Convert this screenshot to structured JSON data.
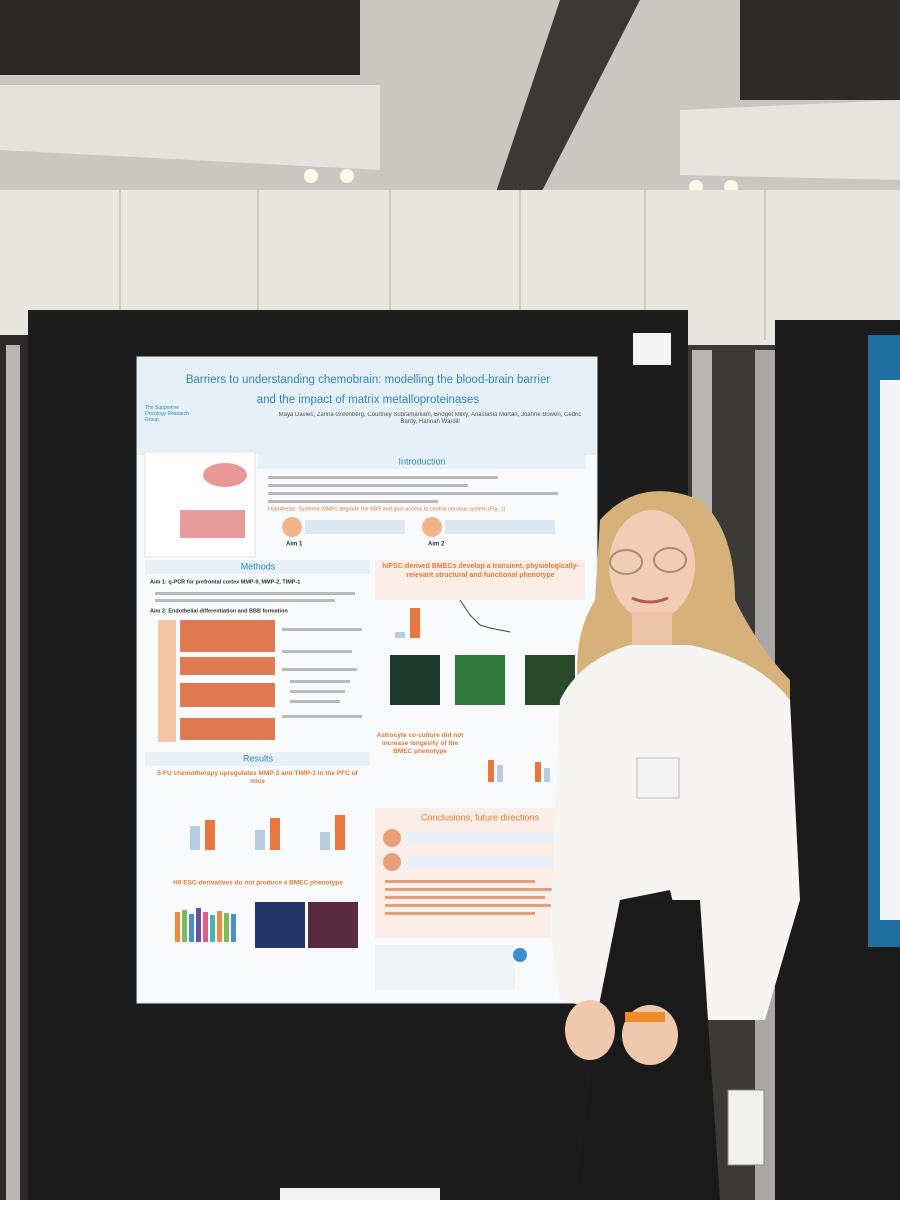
{
  "poster": {
    "title_line1": "Barriers to understanding chemobrain: modelling the blood-brain barrier",
    "title_line2": "and the impact of matrix metalloproteinases",
    "group": "The Supportive Oncology Research Group",
    "authors": "Maya Davies, Zarina Greenberg, Courtney Subramaniam, Bridget Milky, Anastasia Mortan, Joanne Bowen, Cedric Bardy, Hannah Wardill",
    "introduction": {
      "heading": "Introduction",
      "hypothesis": "Hypothesis: Systemic MMPs degrade the BBB and gain access to central nervous system (Fig. 1)",
      "aim1": "Aim 1",
      "aim2": "Aim 2"
    },
    "methods": {
      "heading": "Methods",
      "aim1": "Aim 1: q-PCR for prefrontal cortex MMP-9, MMP-2, TIMP-1",
      "aim2": "Aim 2: Endothelial differentiation and BBB formation"
    },
    "results": {
      "heading": "Results",
      "sub1": "5-FU chemotherapy upregulates MMP-2 and TIMP-1 in the PFC of mice",
      "sub2": "H9 ESC-derivatives do not produce a BMEC phenotype"
    },
    "bmec": {
      "heading": "hiPSC-derived BMECs develop a transient, physiologically-relevant structural and functional phenotype",
      "astrocyte": "Astrocyte co-culture did not increase longevity of the BMEC phenotype"
    },
    "conclusions": {
      "heading": "Conclusions, future directions"
    }
  }
}
